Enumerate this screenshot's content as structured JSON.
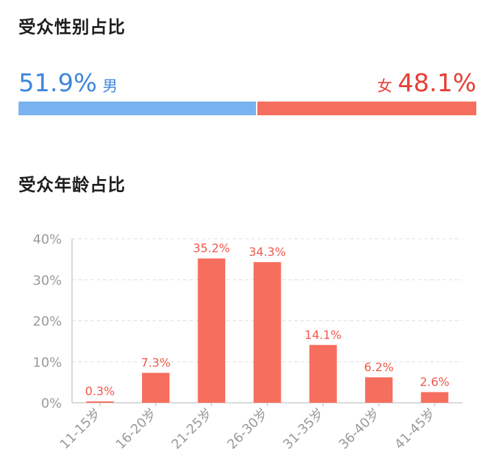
{
  "gender": {
    "title": "受众性别占比",
    "male_pct_label": "51.9%",
    "male_label": "男",
    "male_value": 51.9,
    "female_pct_label": "48.1%",
    "female_label": "女",
    "female_value": 48.1,
    "colors": {
      "male_text": "#3d87de",
      "male_bar": "#78b2ef",
      "female_text": "#e63f34",
      "female_bar": "#f66e5d"
    }
  },
  "age": {
    "title": "受众年龄占比"
  },
  "chart_data": {
    "type": "bar",
    "categories": [
      "11-15岁",
      "16-20岁",
      "21-25岁",
      "26-30岁",
      "31-35岁",
      "36-40岁",
      "41-45岁"
    ],
    "values": [
      0.3,
      7.3,
      35.2,
      34.3,
      14.1,
      6.2,
      2.6
    ],
    "value_labels": [
      "0.3%",
      "7.3%",
      "35.2%",
      "34.3%",
      "14.1%",
      "6.2%",
      "2.6%"
    ],
    "yticks": [
      "0%",
      "10%",
      "20%",
      "30%",
      "40%"
    ],
    "ytick_values": [
      0,
      10,
      20,
      30,
      40
    ],
    "ylim": [
      0,
      40
    ],
    "grid": true,
    "bar_color": "#f66e5d",
    "label_color": "#f0584a",
    "axis_text_color": "#9a9a9a"
  }
}
